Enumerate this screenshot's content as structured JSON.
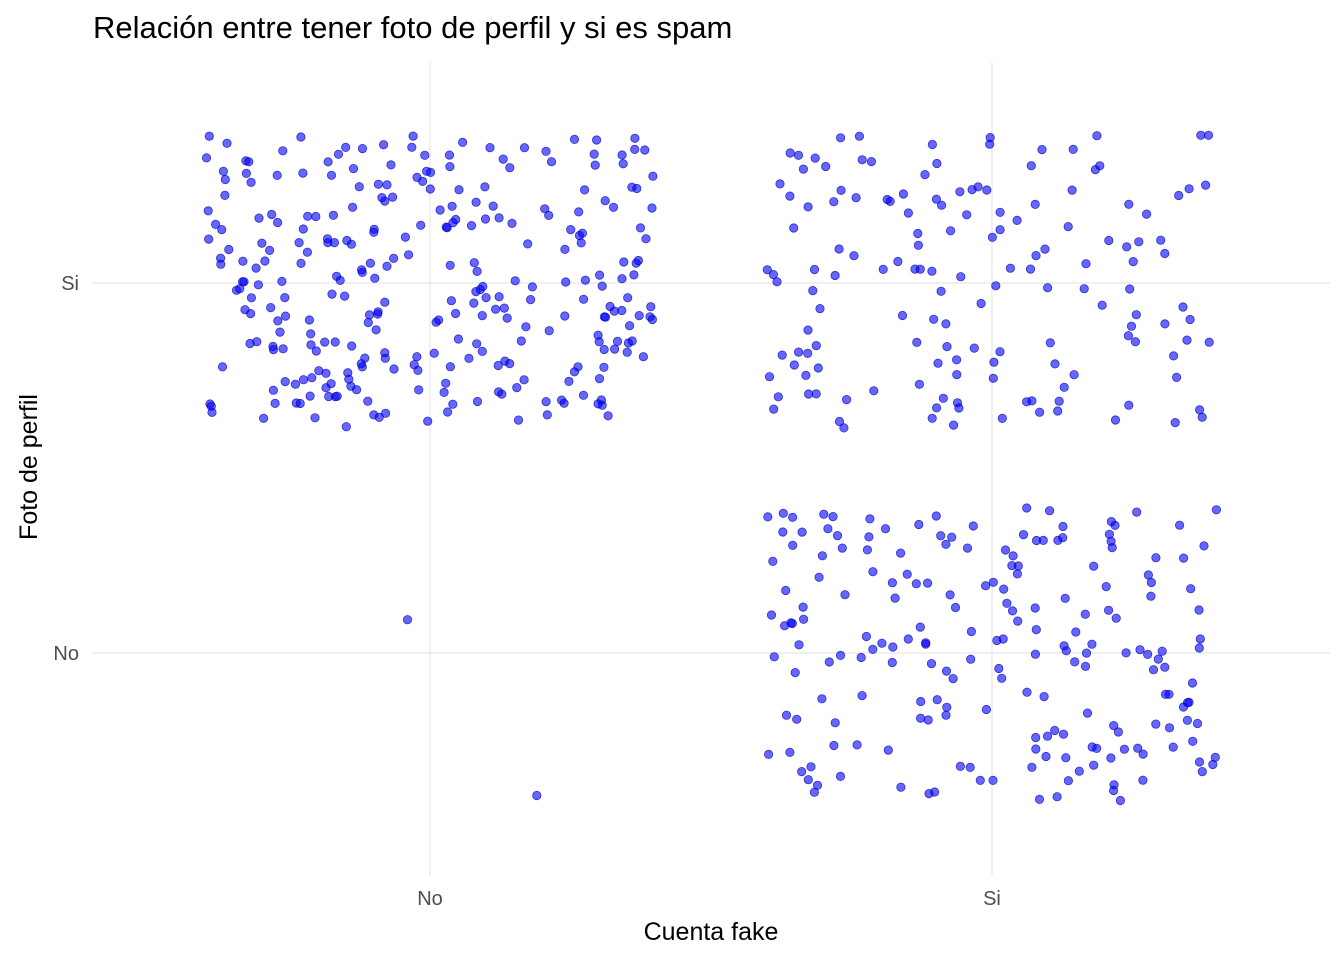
{
  "chart_data": {
    "type": "scatter",
    "title": "Relación entre tener foto de perfil y si es spam",
    "xlabel": "Cuenta fake",
    "ylabel": "Foto de perfil",
    "x_categories": [
      "No",
      "Si"
    ],
    "y_categories": [
      "No",
      "Si"
    ],
    "jitter": 0.4,
    "grid": true,
    "point_color": "#0000ff",
    "point_opacity": 0.6,
    "groups": [
      {
        "x": "No",
        "y": "Si",
        "count": 290
      },
      {
        "x": "No",
        "y": "No",
        "count": 2
      },
      {
        "x": "Si",
        "y": "Si",
        "count": 150
      },
      {
        "x": "Si",
        "y": "No",
        "count": 200
      }
    ],
    "points": [
      {
        "x": "No",
        "y": "No",
        "dx": -0.04,
        "dy": 0.09
      },
      {
        "x": "No",
        "y": "No",
        "dx": 0.19,
        "dy": -0.385
      }
    ]
  }
}
